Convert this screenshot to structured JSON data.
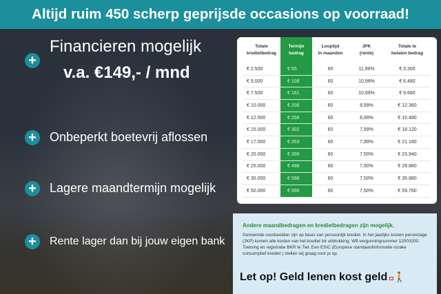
{
  "header": {
    "title": "Altijd ruim 450 scherp geprijsde occasions op voorraad!"
  },
  "features": {
    "title_line1": "Financieren mogelijk",
    "title_line2": "v.a. €149,- / mnd",
    "items": [
      "Onbeperkt boetevrij aflossen",
      "Lagere maandtermijn mogelijk",
      "Rente lager dan bij jouw eigen bank"
    ]
  },
  "table": {
    "headers": [
      [
        "Totale",
        "kredietbedrag"
      ],
      [
        "Termijn",
        "bedrag"
      ],
      [
        "Looptijd",
        "in maanden"
      ],
      [
        "JPK",
        "(rente)"
      ],
      [
        "Totale te",
        "betalen bedrag"
      ]
    ],
    "rows": [
      [
        "€ 2.500",
        "€ 55",
        "60",
        "11,99%",
        "€ 3.300"
      ],
      [
        "€ 5.000",
        "€ 108",
        "60",
        "10,99%",
        "€ 6.480"
      ],
      [
        "€ 7.500",
        "€ 161",
        "60",
        "10,99%",
        "€ 9.660"
      ],
      [
        "€ 10.000",
        "€ 206",
        "60",
        "8,99%",
        "€ 12.360"
      ],
      [
        "€ 12.500",
        "€ 258",
        "60",
        "8,99%",
        "€ 15.480"
      ],
      [
        "€ 15.000",
        "€ 302",
        "60",
        "7,99%",
        "€ 18.120"
      ],
      [
        "€ 17.500",
        "€ 353",
        "60",
        "7,99%",
        "€ 21.180"
      ],
      [
        "€ 20.000",
        "€ 399",
        "60",
        "7,50%",
        "€ 23.940"
      ],
      [
        "€ 25.000",
        "€ 498",
        "60",
        "7,50%",
        "€ 29.880"
      ],
      [
        "€ 30.000",
        "€ 598",
        "60",
        "7,50%",
        "€ 35.880"
      ],
      [
        "€ 50.000",
        "€ 996",
        "60",
        "7,50%",
        "€ 59.760"
      ]
    ]
  },
  "info": {
    "heading": "Andere maandbedragen en kredietbedragen zijn mogelijk.",
    "body": "Genoemde voorbeelden zijn op basis van persoonlijk krediet. In het jaarlijks kosten percentage (JKP) komen alle kosten van het krediet tot uitdrukking. Wft-vergunningnummer 12003200. Toetsing en registratie BKR te Tiel. Een ESIC (Europese standaardinformatie inzake consumptief krediet ) stellen wij graag voor je op.",
    "warning": "Let op! Geld lenen kost geld"
  },
  "colors": {
    "header": "#1c8f9c",
    "accent_green": "#239a43"
  },
  "icons": {
    "bullet": "plus-circle-icon",
    "warning": "walking-person-icon"
  }
}
